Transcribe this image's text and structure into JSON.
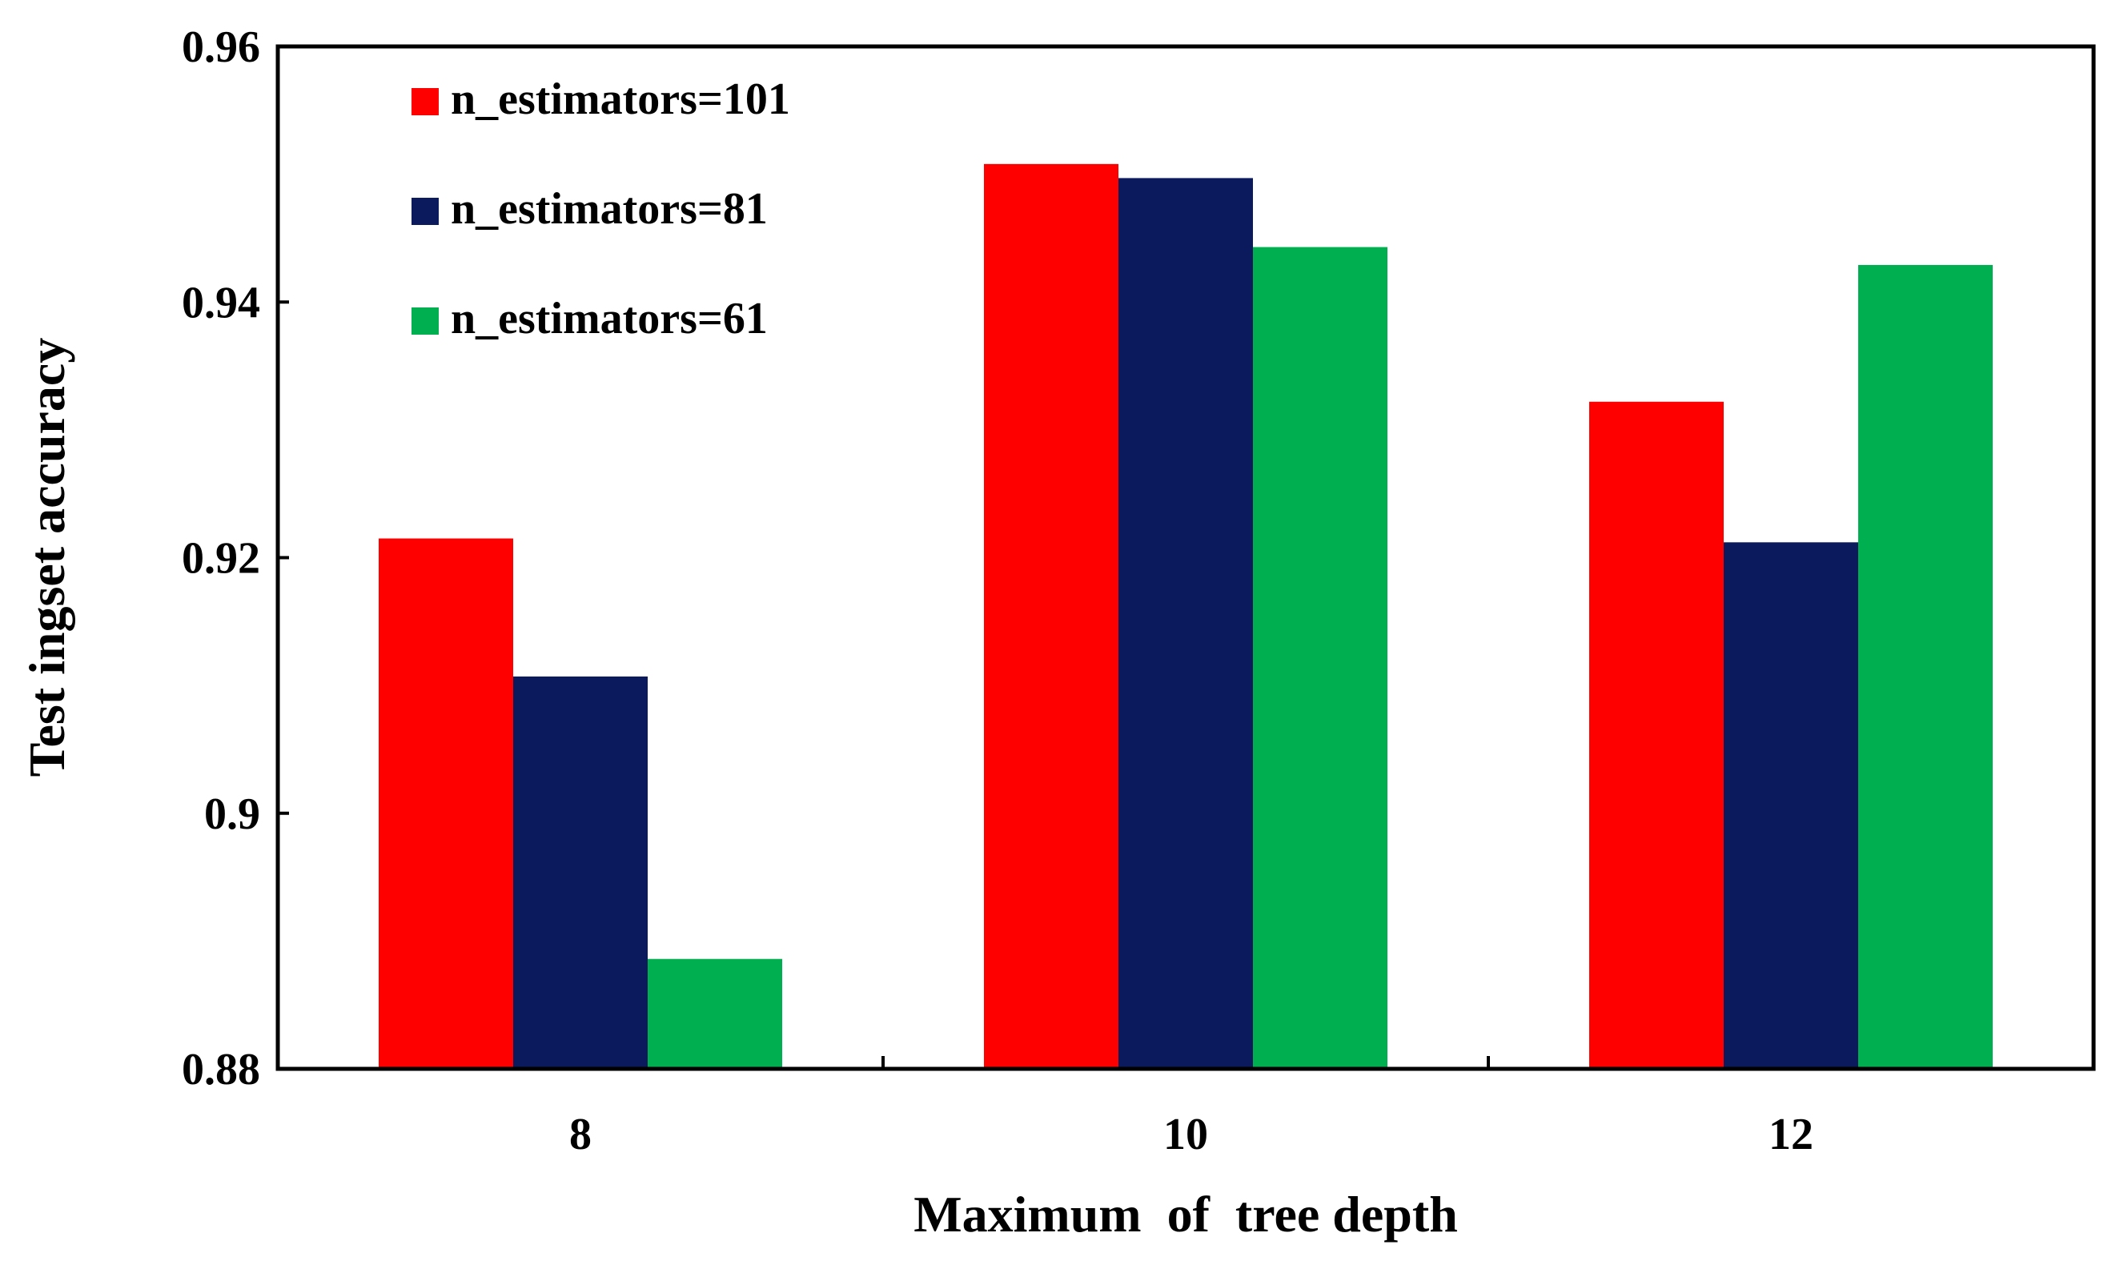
{
  "chart_data": {
    "type": "bar",
    "title": "",
    "xlabel": "Maximum  of  tree depth",
    "ylabel": "Test ingset accuracy",
    "categories": [
      "8",
      "10",
      "12"
    ],
    "ylim": [
      0.88,
      0.96
    ],
    "yticks": [
      0.88,
      0.9,
      0.92,
      0.94,
      0.96
    ],
    "ytick_labels": [
      "0.88",
      "0.9",
      "0.92",
      "0.94",
      "0.96"
    ],
    "grid": false,
    "legend_position": "top-left",
    "series": [
      {
        "name": "n_estimators=101",
        "color": "#ff0000",
        "values": [
          0.9215,
          0.9508,
          0.9322
        ]
      },
      {
        "name": "n_estimators=81",
        "color": "#0a1a5c",
        "values": [
          0.9107,
          0.9497,
          0.9212
        ]
      },
      {
        "name": "n_estimators=61",
        "color": "#00b050",
        "values": [
          0.8886,
          0.9443,
          0.9429
        ]
      }
    ]
  }
}
